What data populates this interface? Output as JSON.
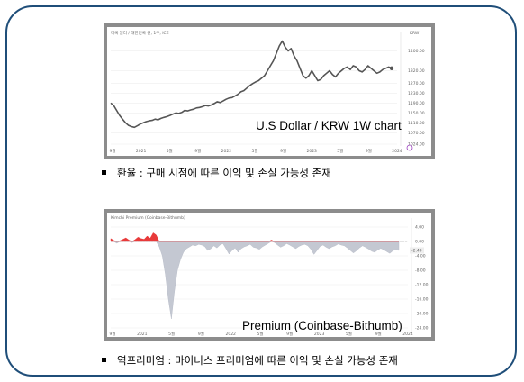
{
  "chart_data": [
    {
      "type": "line",
      "title": "미국 달러 / 대한민국 원, 1주, ICE",
      "caption": "U.S Dollar / KRW 1W chart",
      "currency": "KRW",
      "x_ticks": [
        "9월",
        "2021",
        "5월",
        "9월",
        "2022",
        "5월",
        "9월",
        "2023",
        "5월",
        "9월",
        "2024"
      ],
      "y_ticks": [
        1400.0,
        1320.0,
        1270.0,
        1230.0,
        1190.0,
        1150.0,
        1110.0,
        1070.0,
        1024.0
      ],
      "ylim": [
        1024,
        1460
      ],
      "last_value": 1330,
      "series": [
        {
          "values": [
            1190,
            1180,
            1160,
            1140,
            1125,
            1110,
            1100,
            1095,
            1092,
            1098,
            1105,
            1110,
            1115,
            1118,
            1120,
            1125,
            1122,
            1128,
            1132,
            1135,
            1140,
            1145,
            1150,
            1148,
            1152,
            1160,
            1158,
            1162,
            1165,
            1170,
            1172,
            1175,
            1180,
            1178,
            1182,
            1188,
            1195,
            1192,
            1198,
            1205,
            1210,
            1212,
            1218,
            1225,
            1235,
            1240,
            1250,
            1260,
            1268,
            1275,
            1280,
            1290,
            1300,
            1320,
            1340,
            1360,
            1390,
            1420,
            1440,
            1415,
            1400,
            1410,
            1380,
            1360,
            1330,
            1300,
            1290,
            1300,
            1320,
            1300,
            1280,
            1285,
            1300,
            1310,
            1320,
            1305,
            1295,
            1310,
            1320,
            1330,
            1335,
            1325,
            1340,
            1335,
            1320,
            1315,
            1325,
            1340,
            1330,
            1320,
            1310,
            1315,
            1325,
            1330,
            1335,
            1330
          ]
        }
      ]
    },
    {
      "type": "area",
      "title": "Kimchi Premium (Coinbase-Bithumb)",
      "caption": "Premium (Coinbase-Bithumb)",
      "x_ticks": [
        "9월",
        "2021",
        "5월",
        "9월",
        "2022",
        "5월",
        "9월",
        "2023",
        "5월",
        "9월",
        "2024"
      ],
      "y_ticks": [
        "4.00",
        "0.00",
        "-4.00",
        "-8.00",
        "-12.00",
        "-16.00",
        "-20.00",
        "-24.00"
      ],
      "ylim": [
        -25,
        5
      ],
      "last_value": "-2.49",
      "colors": {
        "positive": "#e83a3a",
        "negative": "#c4c8d2"
      },
      "series": [
        {
          "values": [
            0.8,
            0.3,
            -0.5,
            0.2,
            0.6,
            1.0,
            0.4,
            -0.3,
            0.5,
            1.2,
            0.8,
            0.6,
            1.5,
            0.9,
            2.4,
            1.8,
            -1.5,
            -4.0,
            -9.0,
            -16.0,
            -21.5,
            -14.0,
            -8.0,
            -5.0,
            -3.0,
            -2.0,
            -1.5,
            -1.0,
            -1.2,
            -0.8,
            -1.0,
            -1.4,
            -2.5,
            -2.0,
            -1.2,
            -1.8,
            -1.0,
            -0.6,
            -2.0,
            -3.5,
            -2.5,
            -1.8,
            -3.0,
            -2.0,
            -1.5,
            -1.2,
            -0.8,
            -1.6,
            -1.8,
            -2.2,
            -1.5,
            -1.0,
            -0.5,
            0.4,
            -0.3,
            -1.0,
            -1.6,
            -1.2,
            -0.6,
            -1.0,
            -1.5,
            -2.0,
            -1.4,
            -1.0,
            -0.8,
            -1.2,
            -2.2,
            -3.6,
            -2.5,
            -1.4,
            -1.0,
            -1.6,
            -2.0,
            -1.5,
            -1.2,
            -0.7,
            -1.0,
            -1.2,
            -1.8,
            -2.5,
            -3.2,
            -2.6,
            -1.8,
            -1.2,
            -1.6,
            -2.1,
            -2.7,
            -3.0,
            -2.4,
            -1.9,
            -2.3,
            -2.8,
            -3.3,
            -2.6,
            -2.2,
            -2.49
          ]
        }
      ]
    }
  ],
  "bullets": [
    "환율 : 구매 시점에 따른 이익 및 손실 가능성 존재",
    "역프리미엄 : 마이너스 프리미엄에 따른 이익 및 손실 가능성 존재"
  ]
}
